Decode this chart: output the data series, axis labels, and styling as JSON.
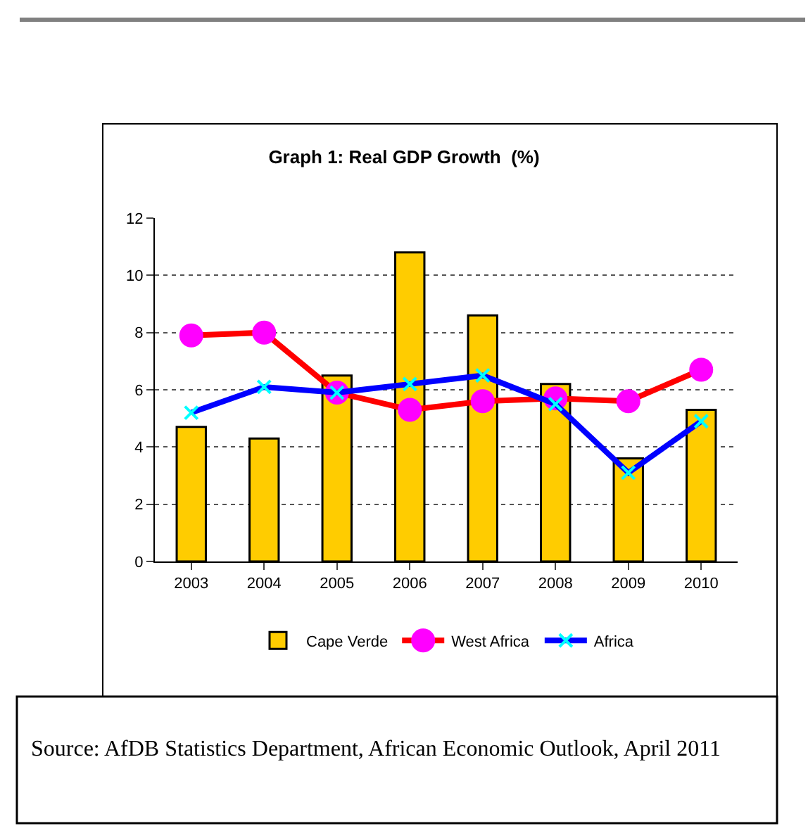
{
  "chart_data": {
    "type": "bar",
    "title": "Graph 1: Real GDP Growth  (%)",
    "categories": [
      "2003",
      "2004",
      "2005",
      "2006",
      "2007",
      "2008",
      "2009",
      "2010"
    ],
    "series": [
      {
        "name": "Cape Verde",
        "color": "#ffcc00",
        "values": [
          4.7,
          4.3,
          6.5,
          10.8,
          8.6,
          6.2,
          3.6,
          5.3
        ]
      },
      {
        "name": "West Africa",
        "type": "line",
        "color": "#ff0000",
        "colors": [
          "#ff00ff",
          "#ff00ff",
          "#ff00ff",
          "#ff00ff",
          "#ff00ff",
          "#ff00ff",
          "#ff00ff",
          "#ff00ff"
        ],
        "marker": "circle",
        "values": [
          7.9,
          8.0,
          5.9,
          5.3,
          5.6,
          5.7,
          5.6,
          6.7
        ]
      },
      {
        "name": "Africa",
        "type": "line",
        "color": "#0000ff",
        "colors": [
          "#00ffff",
          "#00ffff",
          "#00ffff",
          "#00ffff",
          "#00ffff",
          "#00ffff",
          "#00ffff",
          "#00ffff"
        ],
        "marker": "cross",
        "values": [
          5.2,
          6.1,
          5.9,
          6.2,
          6.5,
          5.5,
          3.1,
          4.9
        ]
      }
    ],
    "ylim": [
      0,
      12
    ],
    "yticks": [
      0,
      2,
      4,
      6,
      8,
      10,
      12
    ],
    "grid": "y",
    "legend": "bottom",
    "annotations": [
      "Source: AfDB Statistics Department, African Economic Outlook, April 2011"
    ]
  }
}
